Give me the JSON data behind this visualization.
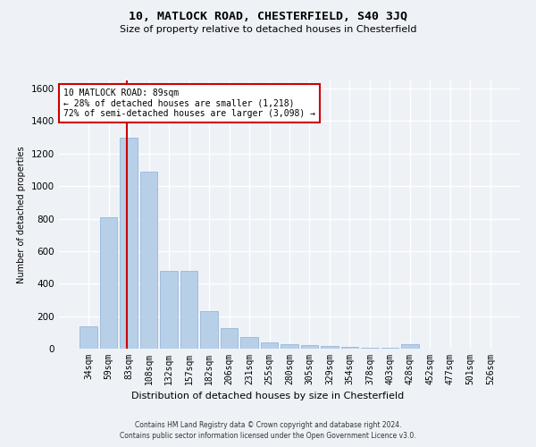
{
  "title": "10, MATLOCK ROAD, CHESTERFIELD, S40 3JQ",
  "subtitle": "Size of property relative to detached houses in Chesterfield",
  "xlabel": "Distribution of detached houses by size in Chesterfield",
  "ylabel": "Number of detached properties",
  "categories": [
    "34sqm",
    "59sqm",
    "83sqm",
    "108sqm",
    "132sqm",
    "157sqm",
    "182sqm",
    "206sqm",
    "231sqm",
    "255sqm",
    "280sqm",
    "305sqm",
    "329sqm",
    "354sqm",
    "378sqm",
    "403sqm",
    "428sqm",
    "452sqm",
    "477sqm",
    "501sqm",
    "526sqm"
  ],
  "values": [
    140,
    810,
    1300,
    1090,
    480,
    480,
    230,
    125,
    70,
    40,
    25,
    20,
    15,
    10,
    5,
    5,
    25,
    0,
    0,
    0,
    0
  ],
  "bar_color": "#b8cfe8",
  "bar_edge_color": "#8aafd6",
  "property_line_color": "#cc0000",
  "property_line_index": 2,
  "annotation_text": "10 MATLOCK ROAD: 89sqm\n← 28% of detached houses are smaller (1,218)\n72% of semi-detached houses are larger (3,098) →",
  "annotation_box_color": "#ffffff",
  "annotation_box_edge": "#cc0000",
  "ylim": [
    0,
    1650
  ],
  "yticks": [
    0,
    200,
    400,
    600,
    800,
    1000,
    1200,
    1400,
    1600
  ],
  "footer_line1": "Contains HM Land Registry data © Crown copyright and database right 2024.",
  "footer_line2": "Contains public sector information licensed under the Open Government Licence v3.0.",
  "bg_color": "#eef2f7",
  "title_fontsize": 9.5,
  "subtitle_fontsize": 8,
  "ylabel_fontsize": 7,
  "xlabel_fontsize": 8,
  "tick_fontsize": 7,
  "annotation_fontsize": 7,
  "footer_fontsize": 5.5
}
